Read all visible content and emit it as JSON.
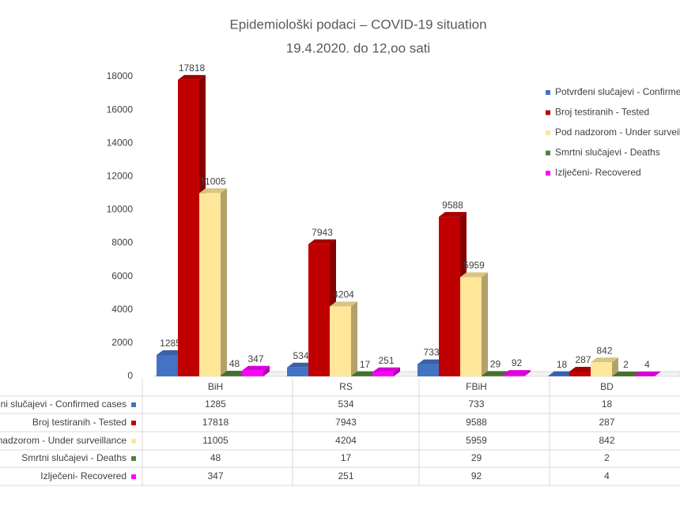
{
  "chart_data": {
    "type": "bar3d",
    "title": "Epidemiološki podaci – COVID-19 situation",
    "subtitle": "19.4.2020. do 12,oo sati",
    "categories": [
      "BiH",
      "RS",
      "FBiH",
      "BD"
    ],
    "series": [
      {
        "name": "Potvrđeni slučajevi - Confirmed cases",
        "color": "#4472c4",
        "values": [
          1285,
          534,
          733,
          18
        ]
      },
      {
        "name": "Broj testiranih - Tested",
        "color": "#c00000",
        "values": [
          17818,
          7943,
          9588,
          287
        ]
      },
      {
        "name": "Pod nadzorom - Under surveillance",
        "color": "#ffe699",
        "values": [
          11005,
          4204,
          5959,
          842
        ]
      },
      {
        "name": "Smrtni slučajevi - Deaths",
        "color": "#548235",
        "values": [
          48,
          17,
          29,
          2
        ]
      },
      {
        "name": "Izlječeni- Recovered",
        "color": "#ff00ff",
        "values": [
          347,
          251,
          92,
          4
        ]
      }
    ],
    "ylim": [
      0,
      18000
    ],
    "yticks": [
      0,
      2000,
      4000,
      6000,
      8000,
      10000,
      12000,
      14000,
      16000,
      18000
    ],
    "grid": false,
    "legend": "right"
  }
}
